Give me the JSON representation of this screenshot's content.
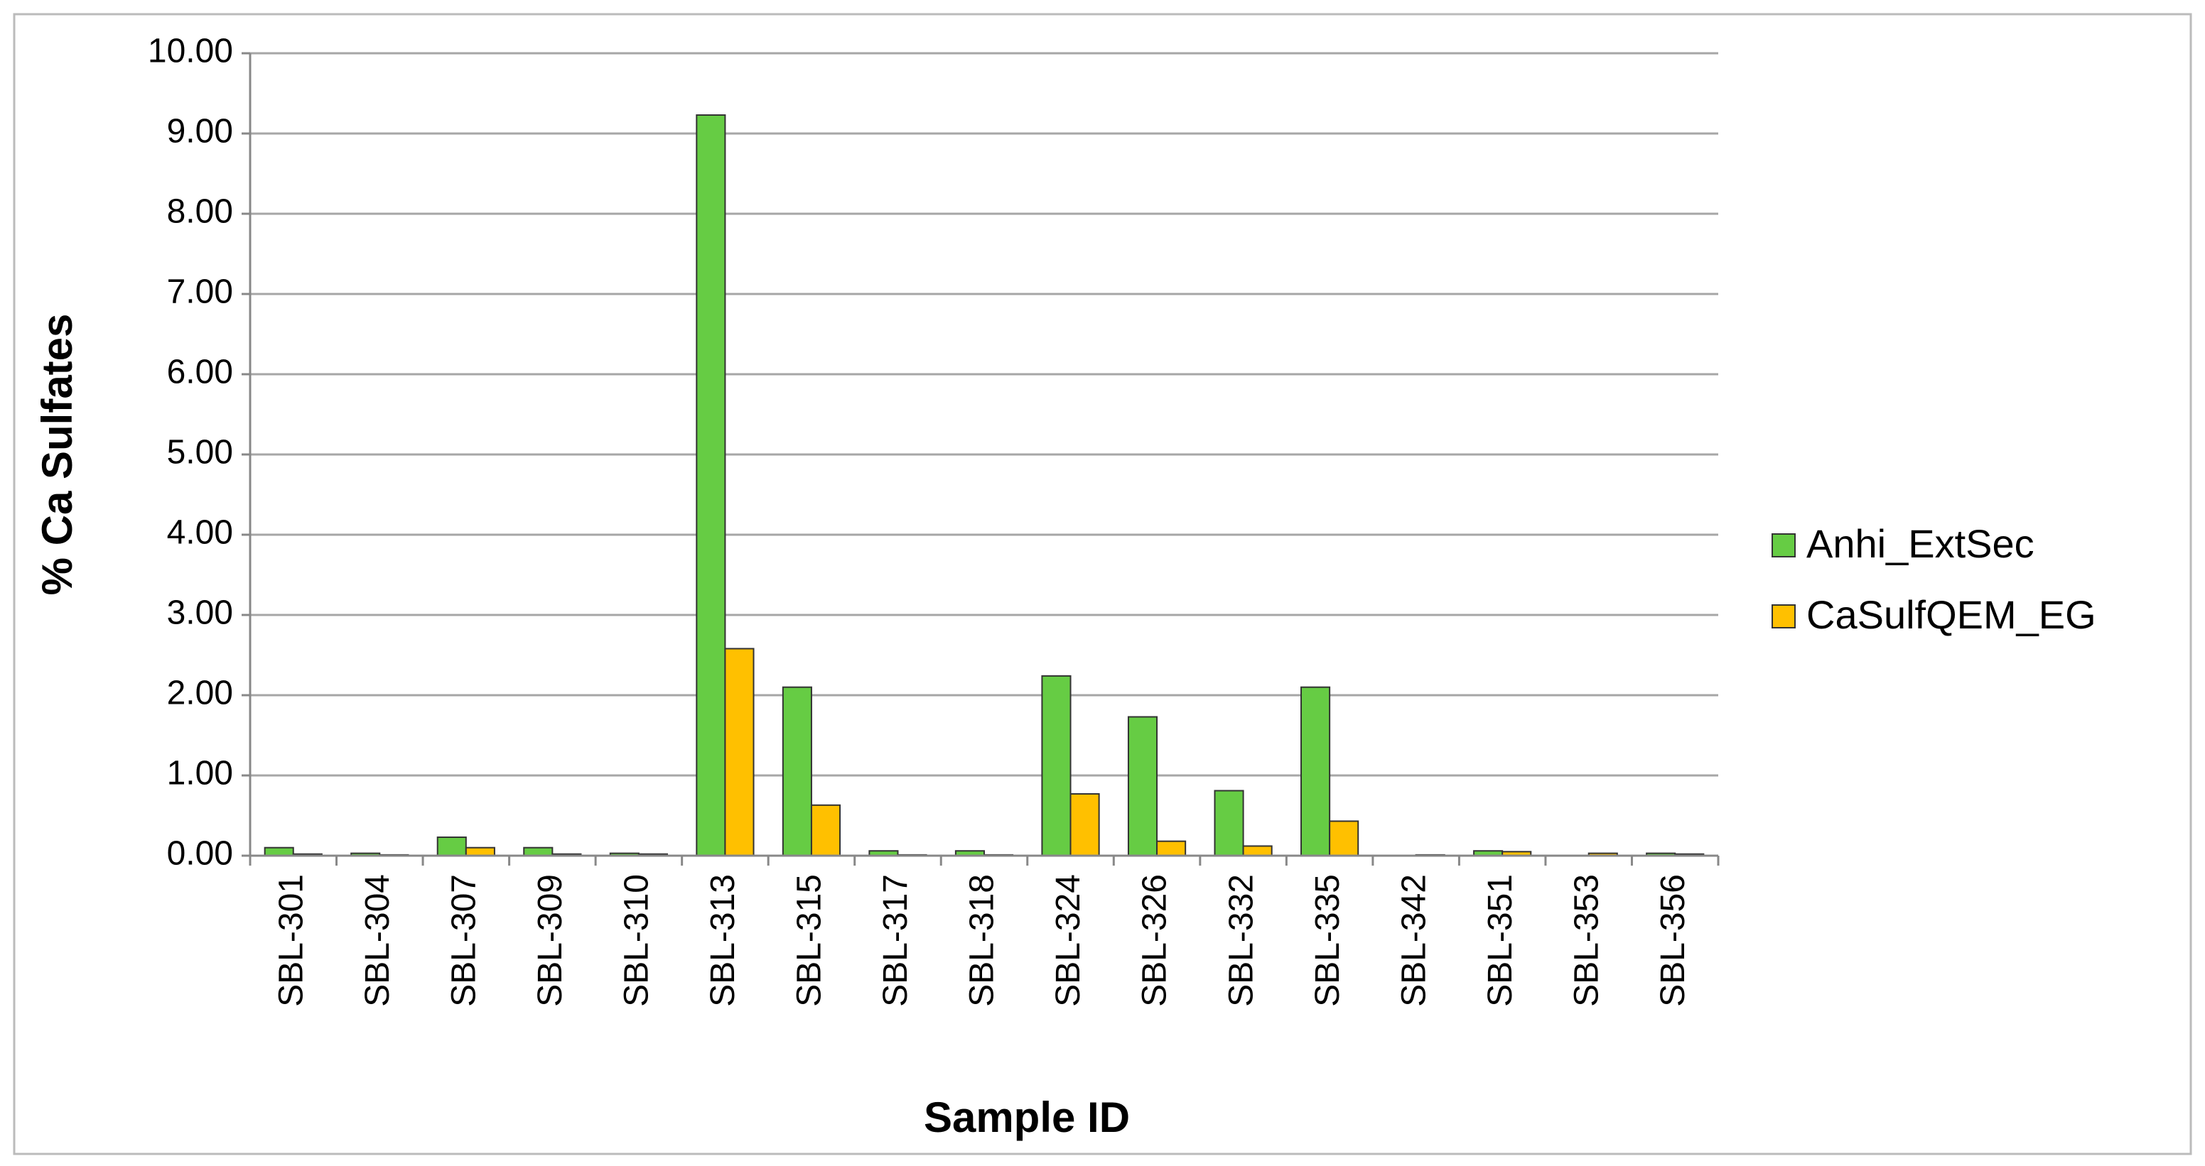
{
  "chart_data": {
    "type": "bar",
    "x_label": "Sample ID",
    "y_label": "% Ca Sulfates",
    "categories": [
      "SBL-301",
      "SBL-304",
      "SBL-307",
      "SBL-309",
      "SBL-310",
      "SBL-313",
      "SBL-315",
      "SBL-317",
      "SBL-318",
      "SBL-324",
      "SBL-326",
      "SBL-332",
      "SBL-335",
      "SBL-342",
      "SBL-351",
      "SBL-353",
      "SBL-356"
    ],
    "series": [
      {
        "name": "Anhi_ExtSec",
        "color": "#66cc44",
        "values": [
          0.1,
          0.03,
          0.23,
          0.1,
          0.03,
          9.23,
          2.1,
          0.06,
          0.06,
          2.24,
          1.73,
          0.81,
          2.1,
          0.0,
          0.06,
          0.0,
          0.03
        ]
      },
      {
        "name": "CaSulfQEM_EG",
        "color": "#ffc000",
        "values": [
          0.02,
          0.01,
          0.1,
          0.02,
          0.02,
          2.58,
          0.63,
          0.01,
          0.01,
          0.77,
          0.18,
          0.12,
          0.43,
          0.01,
          0.05,
          0.03,
          0.02
        ]
      }
    ],
    "ylim": [
      0,
      10
    ],
    "yticks": [
      {
        "value": 0,
        "label": "0.00"
      },
      {
        "value": 1,
        "label": "1.00"
      },
      {
        "value": 2,
        "label": "2.00"
      },
      {
        "value": 3,
        "label": "3.00"
      },
      {
        "value": 4,
        "label": "4.00"
      },
      {
        "value": 5,
        "label": "5.00"
      },
      {
        "value": 6,
        "label": "6.00"
      },
      {
        "value": 7,
        "label": "7.00"
      },
      {
        "value": 8,
        "label": "8.00"
      },
      {
        "value": 9,
        "label": "9.00"
      },
      {
        "value": 10,
        "label": "10.00"
      }
    ],
    "grid": true,
    "legend": "right"
  }
}
